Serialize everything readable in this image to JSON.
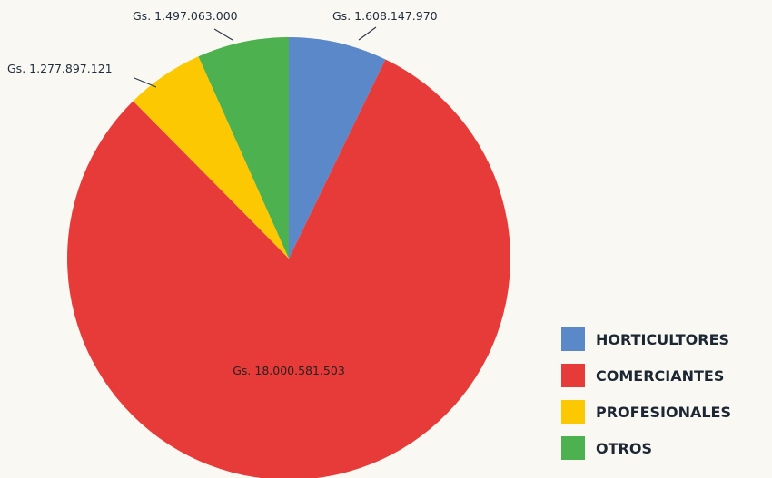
{
  "chart_data": {
    "type": "pie",
    "categories": [
      "HORTICULTORES",
      "COMERCIANTES",
      "PROFESIONALES",
      "OTROS"
    ],
    "values": [
      1608147970,
      18000581503,
      1277897121,
      1497063000
    ],
    "value_labels": [
      "Gs. 1.608.147.970",
      "Gs. 18.000.581.503",
      "Gs. 1.277.897.121",
      "Gs. 1.497.063.000"
    ],
    "colors": [
      "#5b88c8",
      "#e63b38",
      "#fbc801",
      "#4cb14e"
    ],
    "start_angle": "12 o'clock",
    "direction": "clockwise",
    "legend_position": "bottom-right"
  },
  "legend": {
    "items": [
      {
        "label": "HORTICULTORES",
        "color": "#5b88c8"
      },
      {
        "label": "COMERCIANTES",
        "color": "#e63b38"
      },
      {
        "label": "PROFESIONALES",
        "color": "#fbc801"
      },
      {
        "label": "OTROS",
        "color": "#4cb14e"
      }
    ]
  }
}
